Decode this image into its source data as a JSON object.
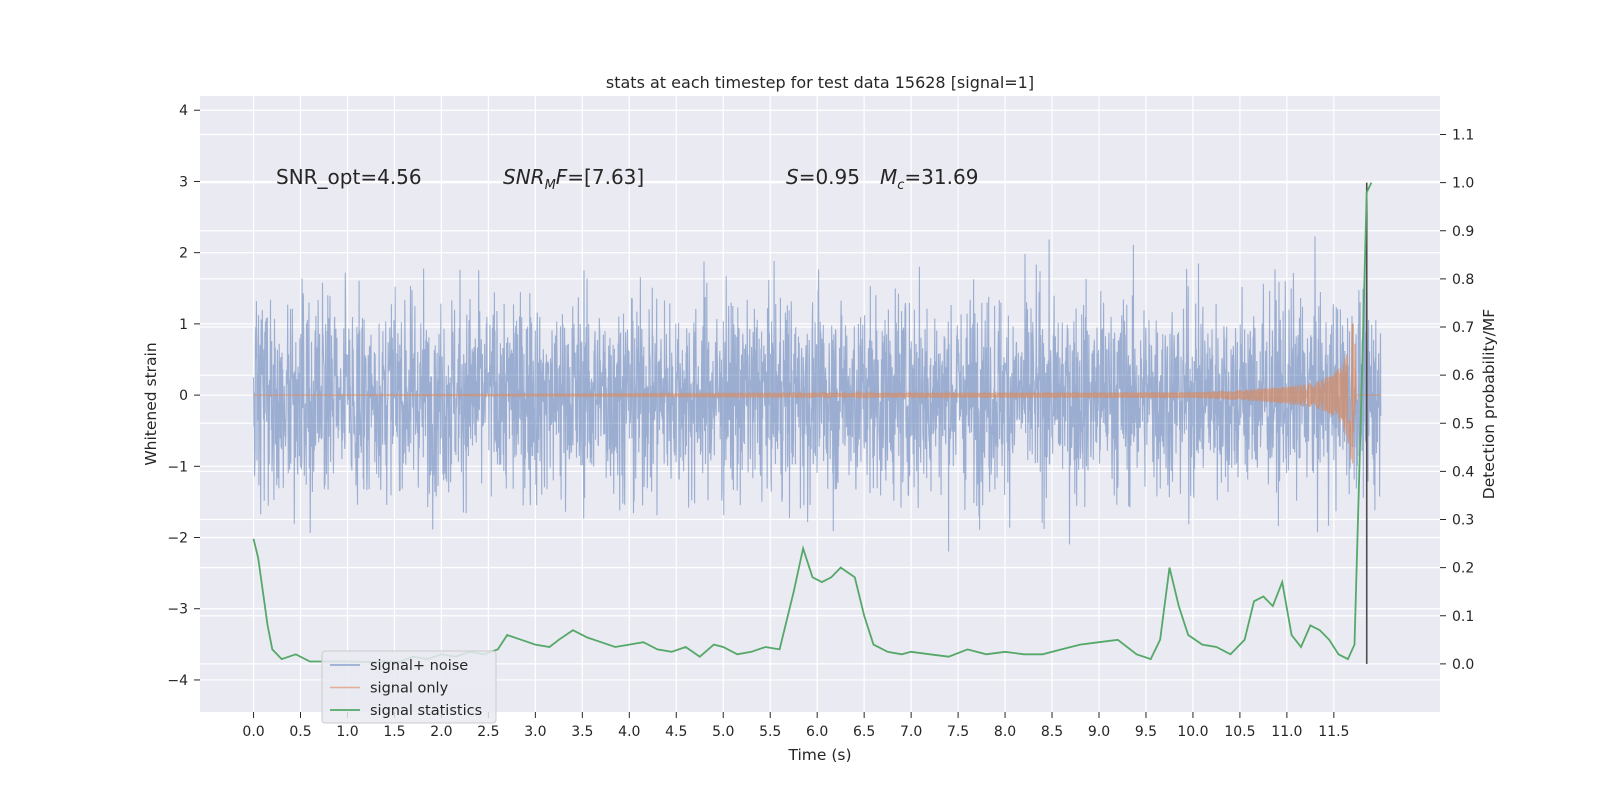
{
  "chart_data": {
    "type": "line",
    "title": "stats at each timestep for test data 15628 [signal=1]",
    "xlabel": "Time (s)",
    "ylabel": "Whitened strain",
    "y2label": "Detection probability/MF",
    "xlim": [
      -0.57,
      12.63
    ],
    "ylim": [
      -4.45,
      4.2
    ],
    "y2lim": [
      -0.1,
      1.18
    ],
    "xticks": [
      "0.0",
      "0.5",
      "1.0",
      "1.5",
      "2.0",
      "2.5",
      "3.0",
      "3.5",
      "4.0",
      "4.5",
      "5.0",
      "5.5",
      "6.0",
      "6.5",
      "7.0",
      "7.5",
      "8.0",
      "8.5",
      "9.0",
      "9.5",
      "10.0",
      "10.5",
      "11.0",
      "11.5"
    ],
    "yticks": [
      "4",
      "3",
      "2",
      "1",
      "0",
      "−1",
      "−2",
      "−3",
      "−4"
    ],
    "y2ticks": [
      "1.1",
      "1.0",
      "0.9",
      "0.8",
      "0.7",
      "0.6",
      "0.5",
      "0.4",
      "0.3",
      "0.2",
      "0.1",
      "0.0"
    ],
    "grid": true,
    "legend_position": "lower-left",
    "annotations": [
      {
        "text": "SNR_opt=4.56",
        "x": 0.2,
        "y": 3.0
      },
      {
        "text": "SNR_MF=[7.63]",
        "x": 2.6,
        "y": 3.0
      },
      {
        "text": "S=0.95",
        "x": 5.6,
        "y": 3.0
      },
      {
        "text": "M_c=31.69",
        "x": 6.6,
        "y": 3.0
      }
    ],
    "series": [
      {
        "name": "signal+ noise",
        "color": "#4c72b0",
        "axis": "left",
        "description_range": [
          -3.65,
          3.85
        ],
        "duration": 12.0
      },
      {
        "name": "signal only",
        "color": "#dd8452",
        "axis": "left",
        "x": [
          0.0,
          10.0,
          10.5,
          11.0,
          11.3,
          11.5,
          11.6,
          11.65,
          11.7,
          11.72,
          11.74,
          12.0
        ],
        "envelope": [
          0.0,
          0.04,
          0.07,
          0.12,
          0.18,
          0.3,
          0.45,
          0.65,
          1.05,
          0.9,
          0.0,
          0.0
        ]
      },
      {
        "name": "signal statistics",
        "color": "#55a868",
        "axis": "right",
        "x": [
          0.0,
          0.05,
          0.1,
          0.15,
          0.2,
          0.3,
          0.45,
          0.6,
          0.8,
          1.0,
          1.2,
          1.4,
          1.55,
          1.7,
          1.85,
          2.0,
          2.15,
          2.3,
          2.45,
          2.6,
          2.7,
          2.85,
          3.0,
          3.15,
          3.25,
          3.4,
          3.55,
          3.7,
          3.85,
          4.0,
          4.15,
          4.3,
          4.45,
          4.6,
          4.75,
          4.9,
          5.0,
          5.15,
          5.3,
          5.45,
          5.6,
          5.75,
          5.85,
          5.95,
          6.05,
          6.15,
          6.25,
          6.4,
          6.5,
          6.6,
          6.75,
          6.9,
          7.0,
          7.2,
          7.4,
          7.6,
          7.8,
          8.0,
          8.2,
          8.4,
          8.6,
          8.8,
          9.0,
          9.2,
          9.4,
          9.55,
          9.65,
          9.75,
          9.85,
          9.95,
          10.1,
          10.25,
          10.4,
          10.55,
          10.65,
          10.75,
          10.85,
          10.95,
          11.05,
          11.15,
          11.25,
          11.35,
          11.45,
          11.55,
          11.65,
          11.72,
          11.8,
          11.85,
          11.9
        ],
        "values": [
          0.26,
          0.22,
          0.15,
          0.08,
          0.03,
          0.01,
          0.02,
          0.005,
          0.005,
          0.005,
          0.004,
          0.005,
          0.004,
          0.015,
          0.01,
          0.02,
          0.015,
          0.025,
          0.02,
          0.03,
          0.06,
          0.05,
          0.04,
          0.035,
          0.05,
          0.07,
          0.055,
          0.045,
          0.035,
          0.04,
          0.045,
          0.03,
          0.025,
          0.035,
          0.015,
          0.04,
          0.035,
          0.02,
          0.025,
          0.035,
          0.03,
          0.15,
          0.24,
          0.18,
          0.17,
          0.18,
          0.2,
          0.18,
          0.1,
          0.04,
          0.025,
          0.02,
          0.025,
          0.02,
          0.015,
          0.03,
          0.02,
          0.025,
          0.02,
          0.02,
          0.03,
          0.04,
          0.045,
          0.05,
          0.02,
          0.01,
          0.05,
          0.2,
          0.12,
          0.06,
          0.04,
          0.035,
          0.02,
          0.05,
          0.13,
          0.14,
          0.12,
          0.17,
          0.06,
          0.035,
          0.08,
          0.07,
          0.05,
          0.02,
          0.01,
          0.04,
          0.6,
          0.98,
          1.0
        ]
      }
    ],
    "vertical_line": {
      "x": 11.85,
      "color": "#4d4d4d"
    }
  }
}
